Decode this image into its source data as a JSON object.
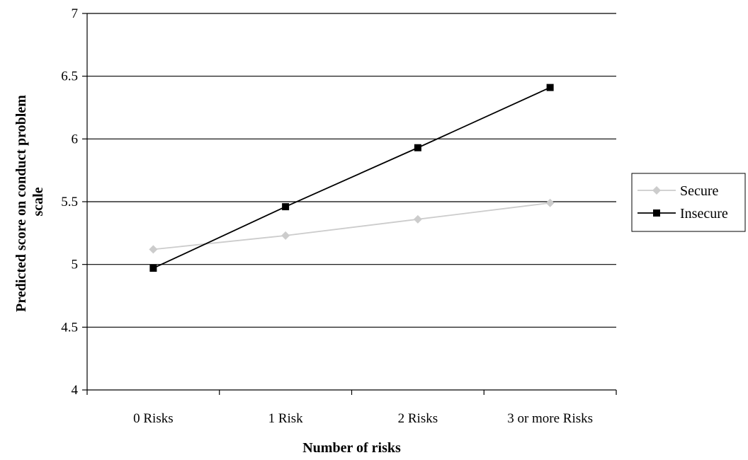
{
  "chart_data": {
    "type": "line",
    "title": "",
    "xlabel": "Number of risks",
    "ylabel_lines": [
      "Predicted score on conduct problem",
      "scale"
    ],
    "categories": [
      "0 Risks",
      "1 Risk",
      "2 Risks",
      "3 or more Risks"
    ],
    "ylim": [
      4,
      7
    ],
    "yticks": [
      4,
      4.5,
      5,
      5.5,
      6,
      6.5,
      7
    ],
    "ytick_labels": [
      "4",
      "4.5",
      "5",
      "5.5",
      "6",
      "6.5",
      "7"
    ],
    "grid": "horizontal",
    "legend_position": "right",
    "series": [
      {
        "name": "Secure",
        "values": [
          5.12,
          5.23,
          5.36,
          5.49
        ],
        "color": "#cccccc",
        "marker": "diamond"
      },
      {
        "name": "Insecure",
        "values": [
          4.97,
          5.46,
          5.93,
          6.41
        ],
        "color": "#000000",
        "marker": "square"
      }
    ]
  }
}
